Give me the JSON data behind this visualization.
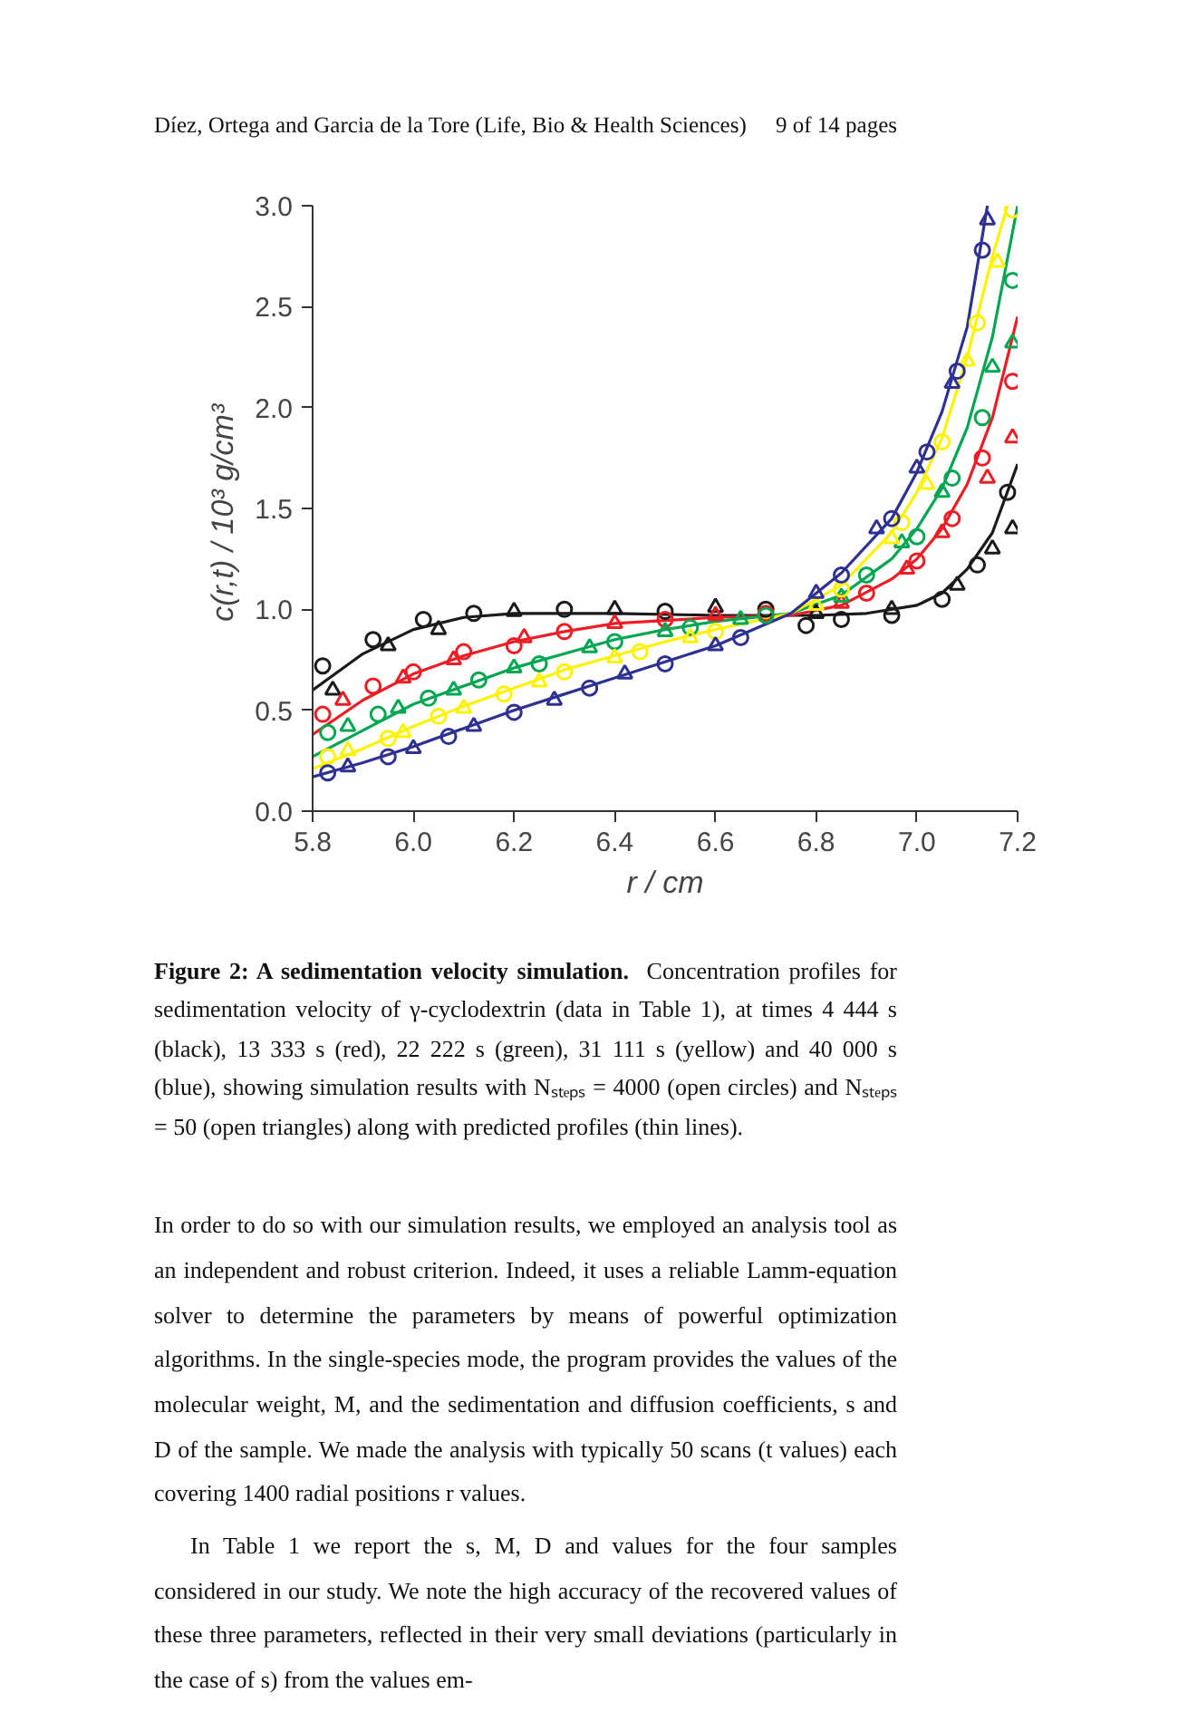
{
  "chart_data": {
    "type": "line",
    "xlabel": "r / cm",
    "ylabel": "c(r,t)  / 10³ g/cm³",
    "xlim": [
      5.8,
      7.2
    ],
    "ylim": [
      0,
      3.0
    ],
    "xticks": [
      5.8,
      {
        "value": 6.0,
        "label": "6.0"
      },
      6.2,
      6.4,
      6.6,
      6.8,
      {
        "value": 7.0,
        "label": "7.0"
      },
      7.2
    ],
    "yticks": [
      {
        "value": 0,
        "label": "0.0"
      },
      0.5,
      {
        "value": 1.0,
        "label": "1.0"
      },
      1.5,
      {
        "value": 2.0,
        "label": "2.0"
      },
      2.5,
      {
        "value": 3.0,
        "label": "3.0"
      }
    ],
    "grid": false,
    "series": [
      {
        "color": "#1a1a1a",
        "x": [
          5.8,
          5.9,
          6.0,
          6.1,
          6.2,
          6.4,
          6.6,
          6.8,
          6.9,
          7.0,
          7.05,
          7.1,
          7.15,
          7.2
        ],
        "values": [
          0.6,
          0.78,
          0.9,
          0.96,
          0.98,
          0.98,
          0.97,
          0.97,
          0.98,
          1.02,
          1.08,
          1.2,
          1.38,
          1.72
        ]
      },
      {
        "color": "#ee1c24",
        "x": [
          5.8,
          5.9,
          6.0,
          6.1,
          6.2,
          6.3,
          6.4,
          6.6,
          6.75,
          6.85,
          6.95,
          7.0,
          7.05,
          7.1,
          7.15,
          7.2
        ],
        "values": [
          0.38,
          0.55,
          0.68,
          0.77,
          0.84,
          0.89,
          0.93,
          0.96,
          0.97,
          1.02,
          1.15,
          1.25,
          1.4,
          1.62,
          1.95,
          2.45
        ]
      },
      {
        "color": "#00a651",
        "x": [
          5.8,
          5.9,
          6.0,
          6.1,
          6.2,
          6.3,
          6.4,
          6.5,
          6.6,
          6.75,
          6.85,
          6.95,
          7.0,
          7.05,
          7.1,
          7.15,
          7.2
        ],
        "values": [
          0.27,
          0.4,
          0.53,
          0.62,
          0.71,
          0.78,
          0.85,
          0.9,
          0.94,
          0.98,
          1.07,
          1.25,
          1.4,
          1.6,
          1.9,
          2.35,
          3.0
        ]
      },
      {
        "color": "#fff200",
        "x": [
          5.8,
          5.9,
          6.0,
          6.1,
          6.2,
          6.3,
          6.4,
          6.5,
          6.6,
          6.75,
          6.85,
          6.95,
          7.0,
          7.05,
          7.1,
          7.15,
          7.18
        ],
        "values": [
          0.21,
          0.31,
          0.42,
          0.52,
          0.61,
          0.7,
          0.77,
          0.84,
          0.9,
          0.98,
          1.12,
          1.38,
          1.58,
          1.85,
          2.25,
          2.75,
          3.0
        ]
      },
      {
        "color": "#2e3192",
        "x": [
          5.8,
          5.9,
          6.0,
          6.1,
          6.2,
          6.3,
          6.4,
          6.5,
          6.6,
          6.75,
          6.85,
          6.95,
          7.0,
          7.05,
          7.1,
          7.14
        ],
        "values": [
          0.17,
          0.24,
          0.32,
          0.41,
          0.5,
          0.58,
          0.66,
          0.74,
          0.82,
          0.98,
          1.18,
          1.45,
          1.68,
          1.98,
          2.4,
          3.0
        ]
      },
      {
        "type": "scatter",
        "marker": "circle",
        "color": "#1a1a1a",
        "x": [
          5.82,
          5.92,
          6.02,
          6.12,
          6.3,
          6.5,
          6.7,
          6.78,
          6.85,
          6.95,
          7.05,
          7.12,
          7.18
        ],
        "values": [
          0.72,
          0.85,
          0.95,
          0.98,
          1.0,
          0.99,
          1.0,
          0.92,
          0.95,
          0.97,
          1.05,
          1.22,
          1.58
        ]
      },
      {
        "type": "scatter",
        "marker": "triangle",
        "color": "#1a1a1a",
        "x": [
          5.84,
          5.95,
          6.05,
          6.2,
          6.4,
          6.6,
          6.8,
          6.95,
          7.08,
          7.15,
          7.19
        ],
        "values": [
          0.6,
          0.82,
          0.9,
          0.99,
          1.0,
          1.01,
          0.98,
          1.0,
          1.12,
          1.3,
          1.4
        ]
      },
      {
        "type": "scatter",
        "marker": "circle",
        "color": "#ee1c24",
        "x": [
          5.82,
          5.92,
          6.0,
          6.1,
          6.2,
          6.3,
          6.5,
          6.7,
          6.9,
          7.0,
          7.07,
          7.13,
          7.19
        ],
        "values": [
          0.48,
          0.62,
          0.69,
          0.79,
          0.82,
          0.89,
          0.95,
          0.98,
          1.08,
          1.24,
          1.45,
          1.75,
          2.13
        ]
      },
      {
        "type": "scatter",
        "marker": "triangle",
        "color": "#ee1c24",
        "x": [
          5.86,
          5.98,
          6.08,
          6.22,
          6.4,
          6.6,
          6.85,
          6.98,
          7.05,
          7.14,
          7.19
        ],
        "values": [
          0.55,
          0.66,
          0.75,
          0.86,
          0.93,
          0.97,
          1.03,
          1.2,
          1.38,
          1.65,
          1.85
        ]
      },
      {
        "type": "scatter",
        "marker": "circle",
        "color": "#00a651",
        "x": [
          5.83,
          5.93,
          6.03,
          6.13,
          6.25,
          6.4,
          6.55,
          6.7,
          6.9,
          7.0,
          7.07,
          7.13,
          7.19
        ],
        "values": [
          0.39,
          0.48,
          0.56,
          0.65,
          0.73,
          0.84,
          0.91,
          0.97,
          1.17,
          1.36,
          1.65,
          1.95,
          2.63
        ]
      },
      {
        "type": "scatter",
        "marker": "triangle",
        "color": "#00a651",
        "x": [
          5.87,
          5.97,
          6.08,
          6.2,
          6.35,
          6.5,
          6.65,
          6.85,
          6.97,
          7.05,
          7.15,
          7.19
        ],
        "values": [
          0.42,
          0.51,
          0.6,
          0.71,
          0.81,
          0.89,
          0.95,
          1.06,
          1.33,
          1.58,
          2.2,
          2.32
        ]
      },
      {
        "type": "scatter",
        "marker": "circle",
        "color": "#fff200",
        "x": [
          5.83,
          5.95,
          6.05,
          6.18,
          6.3,
          6.45,
          6.6,
          6.85,
          6.97,
          7.05,
          7.12,
          7.19
        ],
        "values": [
          0.27,
          0.36,
          0.47,
          0.58,
          0.69,
          0.79,
          0.89,
          1.1,
          1.43,
          1.83,
          2.42,
          2.98
        ]
      },
      {
        "type": "scatter",
        "marker": "triangle",
        "color": "#fff200",
        "x": [
          5.87,
          5.98,
          6.1,
          6.25,
          6.4,
          6.55,
          6.8,
          6.95,
          7.02,
          7.1,
          7.16
        ],
        "values": [
          0.3,
          0.39,
          0.51,
          0.64,
          0.76,
          0.86,
          1.02,
          1.35,
          1.62,
          2.23,
          2.72
        ]
      },
      {
        "type": "scatter",
        "marker": "circle",
        "color": "#2e3192",
        "x": [
          5.83,
          5.95,
          6.07,
          6.2,
          6.35,
          6.5,
          6.65,
          6.85,
          6.95,
          7.02,
          7.08,
          7.13
        ],
        "values": [
          0.19,
          0.27,
          0.37,
          0.49,
          0.61,
          0.73,
          0.86,
          1.17,
          1.45,
          1.78,
          2.18,
          2.78
        ]
      },
      {
        "type": "scatter",
        "marker": "triangle",
        "color": "#2e3192",
        "x": [
          5.87,
          6.0,
          6.12,
          6.28,
          6.42,
          6.6,
          6.8,
          6.92,
          7.0,
          7.07,
          7.14
        ],
        "values": [
          0.22,
          0.31,
          0.42,
          0.55,
          0.68,
          0.82,
          1.08,
          1.4,
          1.7,
          2.12,
          2.93
        ]
      }
    ],
    "annotations": [
      "Díez, Ortega and Garcia de la Tore (Life, Bio & Health Sciences)",
      "9 of 14 pages",
      "Figure 2: A sedimentation velocity simulation.",
      "Concentration profiles for sedimentation velocity of γ-cyclodextrin (data in Table 1), at times 4 444 s (black), 13 333 s (red), 22 222 s (green), 31 111 s (yellow) and 40 000 s (blue), showing simulation results with Nₛₜₑₚₛ = 4000 (open circles) and Nₛₜₑₚₛ = 50 (open triangles) along with predicted profiles (thin lines).",
      "In order to do so with our simulation results, we employed an analysis tool as an independent and robust criterion. Indeed, it uses a reliable Lamm-equation solver to determine the parameters by means of powerful optimization algorithms. In the single-species mode, the program provides the values of the molecular weight, M, and the sedimentation and diffusion coefficients, s and D of the sample. We made the analysis with typically 50 scans (t values) each covering 1400 radial positions r values.",
      "In Table 1 we report the s, M, D and values for the four samples considered in our study. We note the high accuracy of the recovered values of these three parameters, reflected in their very small deviations (particularly in the case of s) from the values em-"
    ]
  }
}
